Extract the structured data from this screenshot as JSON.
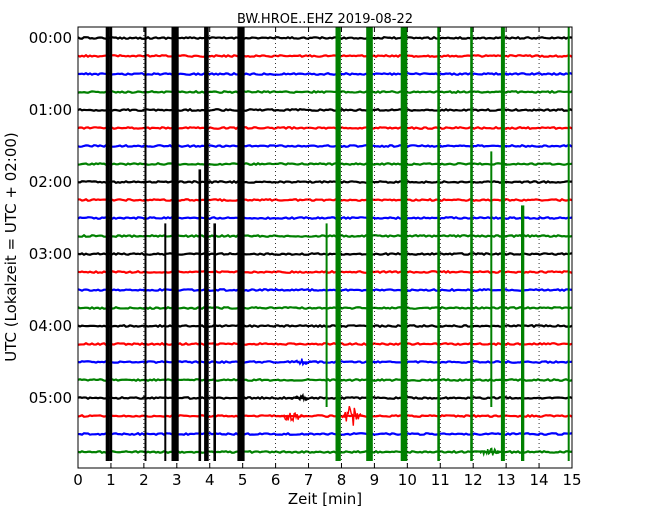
{
  "chart_data": {
    "type": "line",
    "subtype": "helicorder",
    "title": "BW.HROE..EHZ 2019-08-22",
    "xlabel": "Zeit  [min]",
    "ylabel": "UTC (Lokalzeit = UTC + 02:00)",
    "xlim": [
      0,
      15
    ],
    "x_ticks": [
      0,
      1,
      2,
      3,
      4,
      5,
      6,
      7,
      8,
      9,
      10,
      11,
      12,
      13,
      14,
      15
    ],
    "x_tick_labels": [
      "0",
      "1",
      "2",
      "3",
      "4",
      "5",
      "6",
      "7",
      "8",
      "9",
      "10",
      "11",
      "12",
      "13",
      "14",
      "15"
    ],
    "y_tick_labels": [
      "00:00",
      "01:00",
      "02:00",
      "03:00",
      "04:00",
      "05:00"
    ],
    "y_tick_rows": [
      0,
      4,
      8,
      12,
      16,
      20
    ],
    "minutes_per_row": 15,
    "row_count": 24,
    "row_colors": [
      "#000000",
      "#ff0000",
      "#0000ff",
      "#008000"
    ],
    "vertical_gridlines": "dotted",
    "bursts": [
      {
        "x": 0.9,
        "color": "#000000",
        "from_row": 0,
        "to_row": 23,
        "width": 0.12
      },
      {
        "x": 1.0,
        "color": "#000000",
        "from_row": 0,
        "to_row": 23,
        "width": 0.08
      },
      {
        "x": 2.05,
        "color": "#000000",
        "from_row": 0,
        "to_row": 23,
        "width": 0.06
      },
      {
        "x": 2.95,
        "color": "#000000",
        "from_row": 0,
        "to_row": 23,
        "width": 0.22
      },
      {
        "x": 3.9,
        "color": "#000000",
        "from_row": 0,
        "to_row": 23,
        "width": 0.14
      },
      {
        "x": 4.95,
        "color": "#000000",
        "from_row": 0,
        "to_row": 23,
        "width": 0.22
      },
      {
        "x": 2.65,
        "color": "#000000",
        "from_row": 11,
        "to_row": 23,
        "width": 0.05
      },
      {
        "x": 3.7,
        "color": "#000000",
        "from_row": 8,
        "to_row": 23,
        "width": 0.08
      },
      {
        "x": 4.15,
        "color": "#000000",
        "from_row": 11,
        "to_row": 23,
        "width": 0.08
      },
      {
        "x": 7.9,
        "color": "#008000",
        "from_row": 0,
        "to_row": 23,
        "width": 0.16
      },
      {
        "x": 8.85,
        "color": "#008000",
        "from_row": 0,
        "to_row": 23,
        "width": 0.2
      },
      {
        "x": 9.9,
        "color": "#008000",
        "from_row": 0,
        "to_row": 23,
        "width": 0.2
      },
      {
        "x": 10.95,
        "color": "#008000",
        "from_row": 0,
        "to_row": 23,
        "width": 0.08
      },
      {
        "x": 11.95,
        "color": "#008000",
        "from_row": 0,
        "to_row": 23,
        "width": 0.08
      },
      {
        "x": 12.9,
        "color": "#008000",
        "from_row": 0,
        "to_row": 23,
        "width": 0.12
      },
      {
        "x": 7.55,
        "color": "#008000",
        "from_row": 11,
        "to_row": 20,
        "width": 0.06
      },
      {
        "x": 12.55,
        "color": "#008000",
        "from_row": 7,
        "to_row": 20,
        "width": 0.06
      },
      {
        "x": 13.5,
        "color": "#008000",
        "from_row": 10,
        "to_row": 23,
        "width": 0.1
      },
      {
        "x": 14.9,
        "color": "#008000",
        "from_row": 0,
        "to_row": 23,
        "width": 0.06
      }
    ],
    "wiggles": [
      {
        "row": 21,
        "x": 6.5,
        "amp": 0.45
      },
      {
        "row": 21,
        "x": 8.3,
        "amp": 0.6
      },
      {
        "row": 20,
        "x": 6.8,
        "amp": 0.2
      },
      {
        "row": 18,
        "x": 6.8,
        "amp": 0.2
      },
      {
        "row": 23,
        "x": 12.5,
        "amp": 0.3
      }
    ]
  }
}
